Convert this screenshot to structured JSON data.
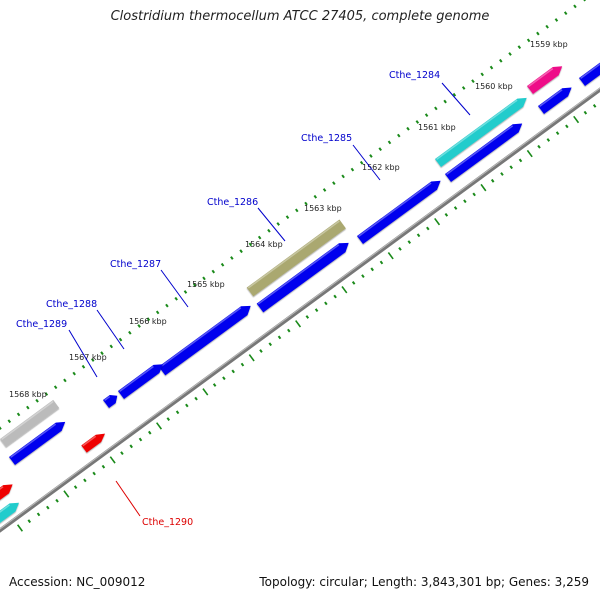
{
  "title": "Clostridium thermocellum ATCC 27405, complete genome",
  "footer": {
    "accession": "Accession: NC_009012",
    "summary": "Topology: circular; Length: 3,843,301 bp; Genes: 3,259"
  },
  "colors": {
    "backbone": "#777777",
    "tick": "#1a8a1a",
    "cds_default": "#0000ee",
    "label_blue": "#0000cc",
    "label_red": "#dd0000",
    "pink": "#ee1188",
    "cyan": "#22cccc",
    "olive": "#aaa870",
    "grey": "#bbbbbb",
    "red": "#ee0000"
  },
  "kbp_labels": [
    "1559 kbp",
    "1560 kbp",
    "1561 kbp",
    "1562 kbp",
    "1563 kbp",
    "1564 kbp",
    "1565 kbp",
    "1566 kbp",
    "1567 kbp",
    "1568 kbp"
  ],
  "gene_labels": [
    "Cthe_1284",
    "Cthe_1285",
    "Cthe_1286",
    "Cthe_1287",
    "Cthe_1288",
    "Cthe_1289",
    "Cthe_1290"
  ]
}
